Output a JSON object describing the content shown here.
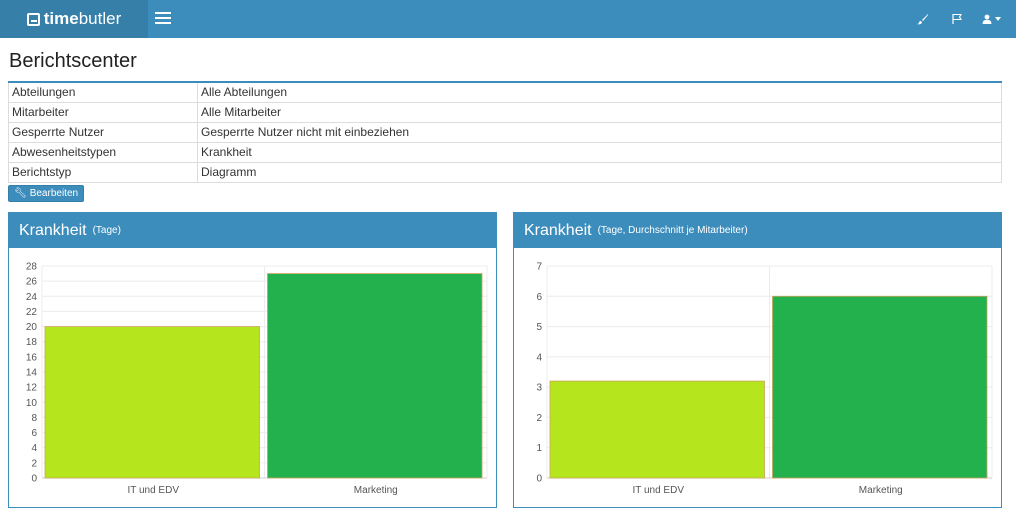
{
  "navbar": {
    "brand_bold": "time",
    "brand_regular": "butler",
    "icons": [
      "brush-icon",
      "flag-icon",
      "user-icon"
    ]
  },
  "page": {
    "title": "Berichtscenter"
  },
  "filters": [
    {
      "label": "Abteilungen",
      "value": "Alle Abteilungen"
    },
    {
      "label": "Mitarbeiter",
      "value": "Alle Mitarbeiter"
    },
    {
      "label": "Gesperrte Nutzer",
      "value": "Gesperrte Nutzer nicht mit einbeziehen"
    },
    {
      "label": "Abwesenheitstypen",
      "value": "Krankheit"
    },
    {
      "label": "Berichtstyp",
      "value": "Diagramm"
    }
  ],
  "edit_button": {
    "label": "Bearbeiten"
  },
  "colors": {
    "accent": "#3c8dbc",
    "bar1": "#b5e61d",
    "bar2": "#22b14c"
  },
  "chart_data": [
    {
      "type": "bar",
      "title": "Krankheit",
      "subtitle": "(Tage)",
      "categories": [
        "IT und EDV",
        "Marketing"
      ],
      "values": [
        20,
        27
      ],
      "ylim": [
        0,
        28
      ],
      "yticks": [
        0,
        2,
        4,
        6,
        8,
        10,
        12,
        14,
        16,
        18,
        20,
        22,
        24,
        26,
        28
      ],
      "grid": true
    },
    {
      "type": "bar",
      "title": "Krankheit",
      "subtitle": "(Tage, Durchschnitt je Mitarbeiter)",
      "categories": [
        "IT und EDV",
        "Marketing"
      ],
      "values": [
        3.2,
        6
      ],
      "ylim": [
        0,
        7
      ],
      "yticks": [
        0,
        1,
        2,
        3,
        4,
        5,
        6,
        7
      ],
      "grid": true
    }
  ]
}
